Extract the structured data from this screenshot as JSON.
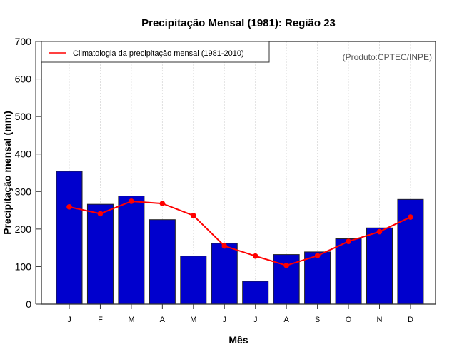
{
  "chart_data": {
    "type": "bar",
    "title": "Precipitação Mensal (1981): Região 23",
    "xlabel": "Mês",
    "ylabel": "Precipitação mensal (mm)",
    "ylim": [
      0,
      700
    ],
    "yticks": [
      0,
      100,
      200,
      300,
      400,
      500,
      600,
      700
    ],
    "categories": [
      "J",
      "F",
      "M",
      "A",
      "M",
      "J",
      "J",
      "A",
      "S",
      "O",
      "N",
      "D"
    ],
    "grid": "vertical-dotted",
    "series": [
      {
        "name": "Precipitação mensal (1981)",
        "type": "bar",
        "color": "#0000CD",
        "values": [
          354,
          266,
          288,
          225,
          128,
          162,
          61,
          132,
          139,
          174,
          203,
          279
        ]
      },
      {
        "name": "Climatologia da precipitação mensal (1981-2010)",
        "type": "line",
        "color": "#FF0000",
        "values": [
          259,
          241,
          274,
          268,
          236,
          155,
          128,
          103,
          129,
          167,
          193,
          232
        ]
      }
    ],
    "legend": {
      "placement": "top-left",
      "entries": [
        "Climatologia da precipitação mensal (1981-2010)"
      ]
    },
    "annotation": "(Produto:CPTEC/INPE)"
  }
}
